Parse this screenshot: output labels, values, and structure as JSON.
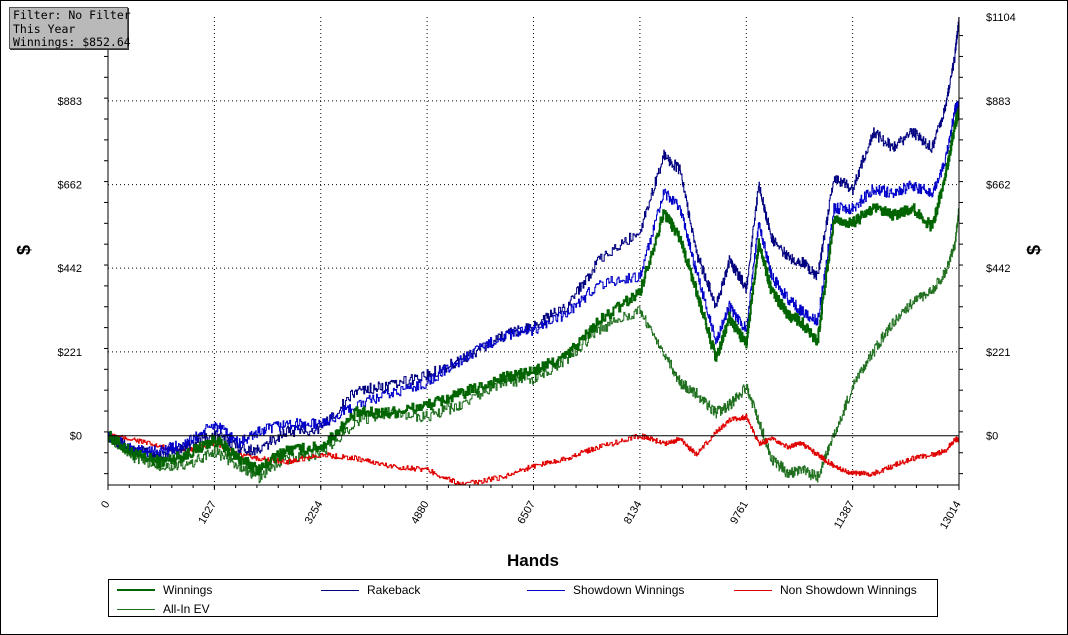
{
  "info": {
    "filter": "Filter: No Filter",
    "period": "This Year",
    "winnings": "Winnings: $852.64"
  },
  "chart_data": {
    "type": "line",
    "title": "",
    "xlabel": "Hands",
    "ylabel_left": "$",
    "ylabel_right": "$",
    "xlim": [
      0,
      13014
    ],
    "ylim": [
      -130,
      1104
    ],
    "x_ticks": [
      "0",
      "1627",
      "3254",
      "4880",
      "6507",
      "8134",
      "9761",
      "11387",
      "13014"
    ],
    "y_ticks_left": [
      "$0",
      "$221",
      "$442",
      "$662",
      "$883"
    ],
    "y_ticks_right": [
      "$0",
      "$221",
      "$442",
      "$662",
      "$883",
      "$1104"
    ],
    "grid": true,
    "legend_position": "bottom",
    "series": [
      {
        "name": "Winnings",
        "color": "#006400",
        "width": 2,
        "x": [
          0,
          400,
          800,
          1200,
          1627,
          2000,
          2300,
          2700,
          3254,
          3800,
          4300,
          4880,
          5400,
          6000,
          6507,
          7000,
          7500,
          8134,
          8500,
          8750,
          9000,
          9300,
          9500,
          9761,
          9950,
          10150,
          10400,
          10600,
          10850,
          11100,
          11387,
          11700,
          12000,
          12300,
          12600,
          12800,
          12950,
          13014
        ],
        "y": [
          0,
          -50,
          -70,
          -50,
          -10,
          -60,
          -90,
          -40,
          -30,
          60,
          60,
          80,
          110,
          150,
          170,
          210,
          300,
          380,
          590,
          520,
          380,
          200,
          310,
          240,
          510,
          380,
          320,
          300,
          250,
          570,
          560,
          600,
          580,
          600,
          550,
          680,
          820,
          852
        ]
      },
      {
        "name": "Rakeback",
        "color": "#000080",
        "width": 1,
        "x": [
          0,
          400,
          800,
          1200,
          1627,
          2000,
          2300,
          2700,
          3254,
          3800,
          4300,
          4880,
          5400,
          6000,
          6507,
          7000,
          7500,
          8134,
          8500,
          8750,
          9000,
          9300,
          9500,
          9761,
          9950,
          10150,
          10400,
          10600,
          10850,
          11100,
          11387,
          11700,
          12000,
          12300,
          12600,
          12800,
          12950,
          13014
        ],
        "y": [
          0,
          -40,
          -50,
          -30,
          5,
          -30,
          -40,
          10,
          20,
          120,
          130,
          160,
          200,
          260,
          290,
          340,
          460,
          540,
          740,
          700,
          480,
          340,
          460,
          390,
          660,
          520,
          470,
          460,
          420,
          680,
          650,
          800,
          760,
          800,
          760,
          860,
          1000,
          1104
        ]
      },
      {
        "name": "Showdown Winnings",
        "color": "#0000c8",
        "width": 1,
        "x": [
          0,
          400,
          800,
          1200,
          1627,
          2000,
          2300,
          2700,
          3254,
          3800,
          4300,
          4880,
          5400,
          6000,
          6507,
          7000,
          7500,
          8134,
          8500,
          8750,
          9000,
          9300,
          9500,
          9761,
          9950,
          10150,
          10400,
          10600,
          10850,
          11100,
          11387,
          11700,
          12000,
          12300,
          12600,
          12800,
          12950,
          13014
        ],
        "y": [
          0,
          -40,
          -40,
          -20,
          30,
          -20,
          10,
          30,
          30,
          80,
          110,
          140,
          200,
          260,
          280,
          320,
          400,
          420,
          640,
          600,
          430,
          250,
          340,
          280,
          560,
          420,
          360,
          330,
          300,
          600,
          600,
          650,
          640,
          660,
          640,
          720,
          860,
          870
        ]
      },
      {
        "name": "Non Showdown Winnings",
        "color": "#e00000",
        "width": 1,
        "x": [
          0,
          400,
          800,
          1200,
          1627,
          2000,
          2300,
          2700,
          3254,
          3800,
          4300,
          4880,
          5400,
          6000,
          6507,
          7000,
          7500,
          8134,
          8500,
          8750,
          9000,
          9300,
          9500,
          9761,
          9950,
          10150,
          10400,
          10600,
          10850,
          11100,
          11387,
          11700,
          12000,
          12300,
          12600,
          12800,
          12950,
          13014
        ],
        "y": [
          0,
          -10,
          -30,
          -40,
          -20,
          -50,
          -60,
          -70,
          -50,
          -60,
          -80,
          -90,
          -130,
          -110,
          -80,
          -60,
          -30,
          0,
          -20,
          -10,
          -50,
          10,
          40,
          50,
          -20,
          -10,
          -30,
          -20,
          -50,
          -80,
          -100,
          -100,
          -80,
          -60,
          -50,
          -40,
          -10,
          -10
        ]
      },
      {
        "name": "All-In EV",
        "color": "#207020",
        "width": 1,
        "x": [
          0,
          400,
          800,
          1200,
          1627,
          2000,
          2300,
          2700,
          3254,
          3800,
          4300,
          4880,
          5400,
          6000,
          6507,
          7000,
          7500,
          8134,
          8500,
          8750,
          9000,
          9300,
          9500,
          9761,
          9950,
          10150,
          10400,
          10600,
          10850,
          11100,
          11387,
          11700,
          12000,
          12300,
          12600,
          12800,
          12950,
          13014
        ],
        "y": [
          0,
          -60,
          -80,
          -80,
          -40,
          -80,
          -110,
          -60,
          -50,
          40,
          60,
          50,
          80,
          140,
          150,
          200,
          280,
          330,
          220,
          140,
          110,
          60,
          80,
          130,
          40,
          -60,
          -100,
          -90,
          -110,
          0,
          130,
          220,
          300,
          350,
          380,
          430,
          500,
          600
        ]
      }
    ]
  }
}
